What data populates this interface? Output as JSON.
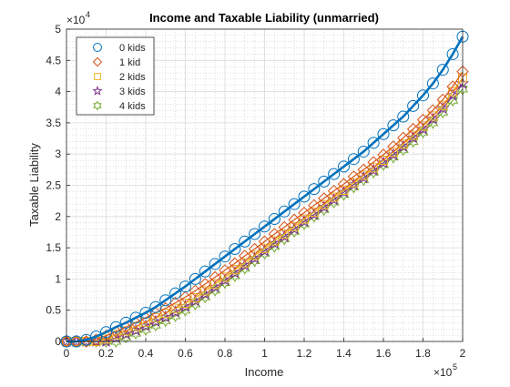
{
  "chart_data": {
    "type": "line",
    "title": "Income and Taxable Liability (unmarried)",
    "xlabel": "Income",
    "ylabel": "Taxable Liability",
    "x_exponent_label": "×10",
    "x_exponent_power": "5",
    "y_exponent_label": "×10",
    "y_exponent_power": "4",
    "xlim": [
      0,
      200000
    ],
    "ylim": [
      0,
      50000
    ],
    "x_ticks": [
      0,
      20000,
      40000,
      60000,
      80000,
      100000,
      120000,
      140000,
      160000,
      180000,
      200000
    ],
    "x_tick_labels": [
      "0",
      "0.2",
      "0.4",
      "0.6",
      "0.8",
      "1",
      "1.2",
      "1.4",
      "1.6",
      "1.8",
      "2"
    ],
    "y_ticks": [
      0,
      5000,
      10000,
      15000,
      20000,
      25000,
      30000,
      35000,
      40000,
      45000,
      50000
    ],
    "y_tick_labels": [
      "0",
      "0.5",
      "1",
      "1.5",
      "2",
      "2.5",
      "3",
      "3.5",
      "4",
      "4.5",
      "5"
    ],
    "grid": "major and minor dotted",
    "legend_placement": "top-left",
    "x": [
      0,
      5000,
      10000,
      15000,
      20000,
      25000,
      30000,
      35000,
      40000,
      45000,
      50000,
      55000,
      60000,
      65000,
      70000,
      75000,
      80000,
      85000,
      90000,
      95000,
      100000,
      105000,
      110000,
      115000,
      120000,
      125000,
      130000,
      135000,
      140000,
      145000,
      150000,
      155000,
      160000,
      165000,
      170000,
      175000,
      180000,
      185000,
      190000,
      195000,
      200000
    ],
    "series": [
      {
        "name": "0 kids",
        "marker": "circle",
        "color": "#0072BD",
        "values": [
          0,
          0,
          250,
          800,
          1500,
          2300,
          3000,
          3800,
          4600,
          5500,
          6600,
          7700,
          8800,
          10000,
          11200,
          12400,
          13600,
          14800,
          16000,
          17200,
          18400,
          19600,
          20800,
          22000,
          23200,
          24400,
          25600,
          26800,
          28000,
          29200,
          30400,
          31800,
          33200,
          34600,
          36000,
          37700,
          39400,
          41300,
          43500,
          46000,
          48800
        ]
      },
      {
        "name": "1 kid",
        "marker": "diamond",
        "color": "#D95319",
        "values": [
          0,
          0,
          0,
          300,
          900,
          1600,
          2300,
          3000,
          3800,
          4600,
          5300,
          6200,
          7100,
          8100,
          9200,
          10300,
          11400,
          12500,
          13700,
          14800,
          16000,
          17200,
          18300,
          19500,
          20600,
          21800,
          22900,
          24100,
          25200,
          26400,
          27500,
          28700,
          29900,
          31200,
          32600,
          34000,
          35500,
          37000,
          38700,
          40800,
          43200
        ]
      },
      {
        "name": "2 kids",
        "marker": "square",
        "color": "#EDB120",
        "values": [
          0,
          0,
          0,
          0,
          400,
          1100,
          1700,
          2400,
          3100,
          3800,
          4500,
          5300,
          6100,
          7000,
          8100,
          9200,
          10300,
          11500,
          12600,
          13800,
          14900,
          16100,
          17200,
          18400,
          19600,
          20700,
          21900,
          23100,
          24200,
          25400,
          26600,
          27800,
          29000,
          30300,
          31600,
          33000,
          34500,
          36100,
          37800,
          40000,
          42200
        ]
      },
      {
        "name": "3 kids",
        "marker": "pentagram",
        "color": "#7E2F8E",
        "values": [
          0,
          0,
          0,
          0,
          0,
          600,
          1200,
          1800,
          2500,
          3200,
          3900,
          4700,
          5600,
          6500,
          7600,
          8700,
          9800,
          11000,
          12200,
          13300,
          14500,
          15700,
          16800,
          18000,
          19200,
          20300,
          21500,
          22700,
          23900,
          25100,
          26200,
          27400,
          28600,
          29900,
          31200,
          32600,
          34000,
          35600,
          37300,
          39400,
          41300
        ]
      },
      {
        "name": "4 kids",
        "marker": "hexagram",
        "color": "#77AC30",
        "values": [
          0,
          0,
          0,
          0,
          0,
          0,
          700,
          1300,
          1900,
          2600,
          3300,
          4100,
          5000,
          6000,
          7100,
          8200,
          9400,
          10500,
          11700,
          12900,
          14100,
          15200,
          16400,
          17600,
          18800,
          20000,
          21100,
          22300,
          23500,
          24700,
          25900,
          27100,
          28300,
          29500,
          30700,
          32000,
          33500,
          35000,
          36700,
          38600,
          40400
        ]
      }
    ]
  }
}
